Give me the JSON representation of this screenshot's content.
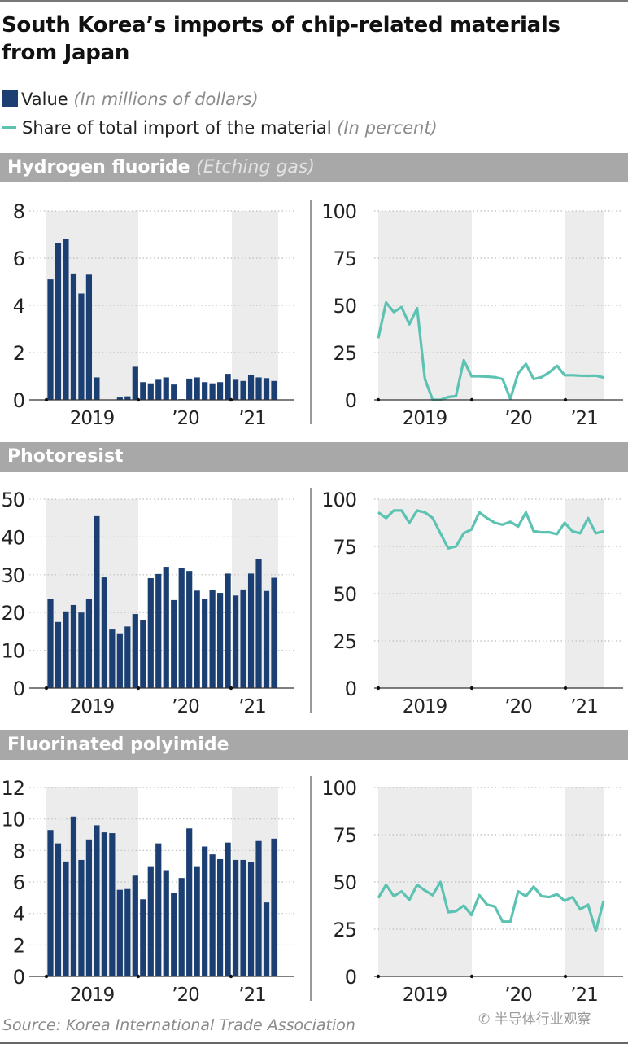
{
  "title": "South Korea’s imports of chip-related materials from Japan",
  "legend": {
    "value_label": "Value",
    "value_unit": "(In millions of dollars)",
    "share_label": "Share of total import of the material",
    "share_unit": "(In percent)"
  },
  "colors": {
    "bar": "#1b3f72",
    "line": "#5cc2b1",
    "shade": "#ececec",
    "section_header": "#a8a8a8"
  },
  "source": "Source: Korea International Trade Association",
  "watermark": "半导体行业观察",
  "sections": [
    {
      "name": "Hydrogen fluoride",
      "subtitle": "(Etching gas)"
    },
    {
      "name": "Photoresist",
      "subtitle": ""
    },
    {
      "name": "Fluorinated polyimide",
      "subtitle": ""
    }
  ],
  "chart_data": [
    {
      "type": "bar",
      "title": "Hydrogen fluoride",
      "series_name": "Value",
      "x_tick_labels": [
        "2019",
        "’20",
        "’21"
      ],
      "x_range": [
        "2019-01",
        "2021-06"
      ],
      "ylim": [
        0,
        8
      ],
      "yticks": [
        0,
        2,
        4,
        6,
        8
      ],
      "grid": true,
      "values": [
        5.1,
        6.65,
        6.8,
        5.35,
        4.5,
        5.3,
        0.95,
        0,
        0,
        0.1,
        0.15,
        1.4,
        0.75,
        0.7,
        0.85,
        0.95,
        0.65,
        0.03,
        0.9,
        0.95,
        0.75,
        0.7,
        0.75,
        1.1,
        0.85,
        0.8,
        1.05,
        0.95,
        0.92,
        0.8
      ]
    },
    {
      "type": "line",
      "title": "Hydrogen fluoride",
      "series_name": "Share of total import of the material",
      "x_tick_labels": [
        "2019",
        "’20",
        "’21"
      ],
      "x_range": [
        "2019-01",
        "2021-06"
      ],
      "ylim": [
        0,
        100
      ],
      "yticks": [
        0,
        25,
        50,
        75,
        100
      ],
      "grid": true,
      "values": [
        32.6,
        51.5,
        46.5,
        49,
        40,
        48.5,
        11,
        0,
        0,
        1.5,
        2,
        21,
        12.5,
        12.5,
        12.3,
        12,
        11,
        0.5,
        14,
        19,
        11,
        12,
        14.5,
        18,
        13,
        13,
        12.8,
        12.7,
        12.8,
        11.8
      ]
    },
    {
      "type": "bar",
      "title": "Photoresist",
      "series_name": "Value",
      "x_tick_labels": [
        "2019",
        "’20",
        "’21"
      ],
      "x_range": [
        "2019-01",
        "2021-06"
      ],
      "ylim": [
        0,
        50
      ],
      "yticks": [
        0,
        10,
        20,
        30,
        40,
        50
      ],
      "grid": true,
      "values": [
        23.5,
        17.5,
        20.3,
        22,
        20,
        23.5,
        45.5,
        29.3,
        15.5,
        14.5,
        16.3,
        19.6,
        18.1,
        29.1,
        30.2,
        32.1,
        23.3,
        31.9,
        31,
        25.8,
        23.6,
        26,
        25.2,
        30.3,
        24.5,
        26.1,
        30.3,
        34.2,
        25.7,
        29.2
      ]
    },
    {
      "type": "line",
      "title": "Photoresist",
      "series_name": "Share of total import of the material",
      "x_tick_labels": [
        "2019",
        "’20",
        "’21"
      ],
      "x_range": [
        "2019-01",
        "2021-06"
      ],
      "ylim": [
        0,
        100
      ],
      "yticks": [
        0,
        25,
        50,
        75,
        100
      ],
      "grid": true,
      "values": [
        93,
        90,
        94,
        94,
        87.5,
        94,
        93,
        90,
        82,
        74,
        75,
        82,
        84,
        93,
        90,
        87.5,
        86.5,
        88,
        85.5,
        93,
        83,
        82.5,
        82.5,
        81.5,
        87.5,
        83,
        82,
        90,
        82,
        83
      ]
    },
    {
      "type": "bar",
      "title": "Fluorinated polyimide",
      "series_name": "Value",
      "x_tick_labels": [
        "2019",
        "’20",
        "’21"
      ],
      "x_range": [
        "2019-01",
        "2021-06"
      ],
      "ylim": [
        0,
        12
      ],
      "yticks": [
        0,
        2,
        4,
        6,
        8,
        10,
        12
      ],
      "grid": true,
      "values": [
        9.3,
        8.45,
        7.3,
        10.15,
        7.4,
        8.7,
        9.6,
        9.15,
        9.1,
        5.5,
        5.55,
        6.4,
        4.9,
        6.95,
        8.45,
        6.75,
        5.3,
        6.25,
        9.4,
        6.95,
        8.25,
        7.75,
        7.45,
        8.5,
        7.4,
        7.4,
        7.25,
        8.6,
        4.7,
        8.75
      ]
    },
    {
      "type": "line",
      "title": "Fluorinated polyimide",
      "series_name": "Share of total import of the material",
      "x_tick_labels": [
        "2019",
        "’20",
        "’21"
      ],
      "x_range": [
        "2019-01",
        "2021-06"
      ],
      "ylim": [
        0,
        100
      ],
      "yticks": [
        0,
        25,
        50,
        75,
        100
      ],
      "grid": true,
      "values": [
        41.5,
        48.5,
        42.5,
        45,
        40.5,
        48.5,
        45.5,
        43,
        50,
        34,
        34.5,
        37.5,
        32.5,
        43,
        38,
        37,
        29,
        29,
        45,
        42.5,
        47.5,
        42.5,
        42,
        43.5,
        40,
        42,
        35.5,
        38,
        24,
        40
      ]
    }
  ]
}
